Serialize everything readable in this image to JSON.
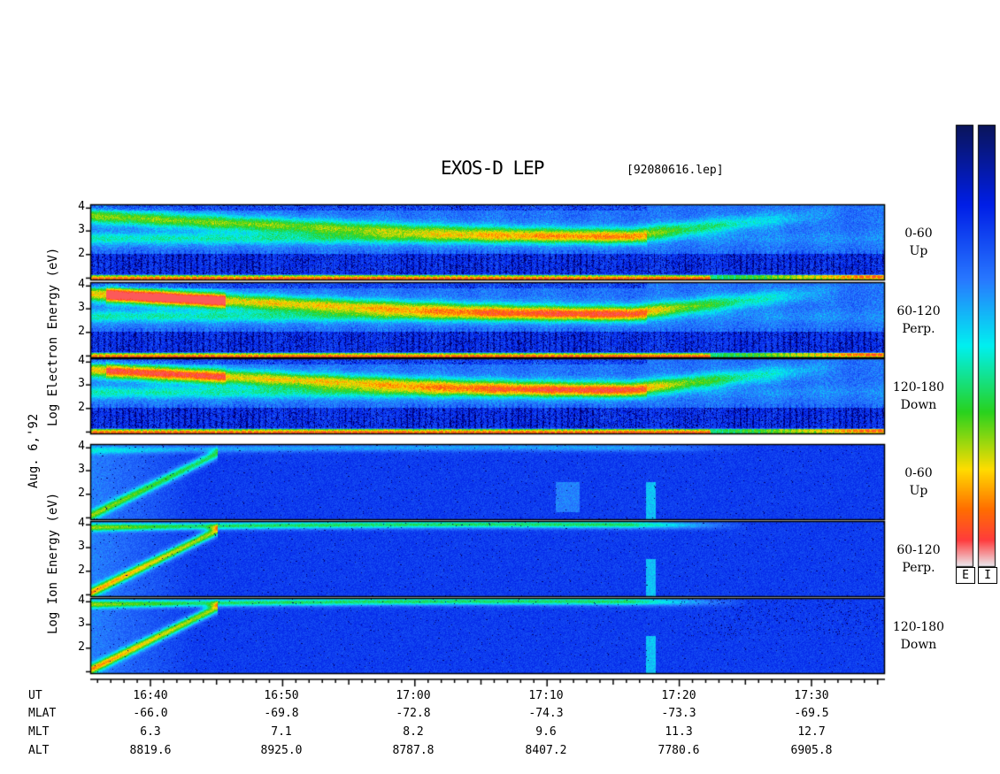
{
  "chart_data": {
    "type": "heatmap",
    "title": "EXOS-D LEP",
    "file": "[92080616.lep]",
    "date_label": "Aug. 6,'92",
    "electron_ylabel": "Log Electron Energy (eV)",
    "ion_ylabel": "Log Ion Energy (eV)",
    "yticks": [
      "4",
      "3",
      "2"
    ],
    "panels": [
      {
        "group": "electron",
        "pitch": "0-60",
        "dir": "Up"
      },
      {
        "group": "electron",
        "pitch": "60-120",
        "dir": "Perp."
      },
      {
        "group": "electron",
        "pitch": "120-180",
        "dir": "Down"
      },
      {
        "group": "ion",
        "pitch": "0-60",
        "dir": "Up"
      },
      {
        "group": "ion",
        "pitch": "60-120",
        "dir": "Perp."
      },
      {
        "group": "ion",
        "pitch": "120-180",
        "dir": "Down"
      }
    ],
    "colorbars": [
      "E",
      "I"
    ],
    "x_rows": [
      {
        "label": "UT",
        "values": [
          "16:40",
          "16:50",
          "17:00",
          "17:10",
          "17:20",
          "17:30"
        ]
      },
      {
        "label": "MLAT",
        "values": [
          "-66.0",
          "-69.8",
          "-72.8",
          "-74.3",
          "-73.3",
          "-69.5"
        ]
      },
      {
        "label": "MLT",
        "values": [
          "6.3",
          "7.1",
          "8.2",
          "9.6",
          "11.3",
          "12.7"
        ]
      },
      {
        "label": "ALT",
        "values": [
          "8819.6",
          "8925.0",
          "8787.8",
          "8407.2",
          "7780.6",
          "6905.8"
        ]
      }
    ]
  }
}
